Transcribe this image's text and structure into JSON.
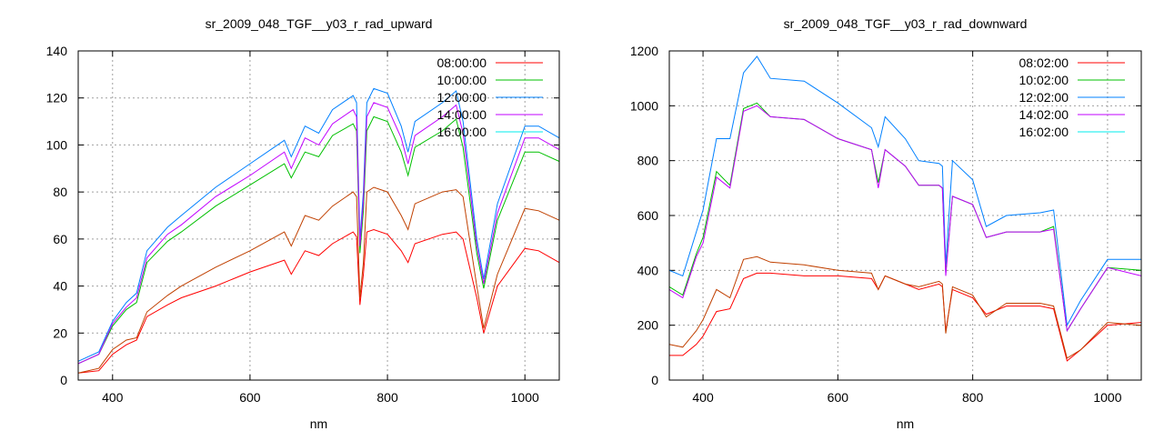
{
  "chart_data": [
    {
      "type": "line",
      "title": "sr_2009_048_TGF__y03_r_rad_upward",
      "xlabel": "nm",
      "ylabel": "",
      "xlim": [
        350,
        1050
      ],
      "ylim": [
        0,
        140
      ],
      "xticks": [
        400,
        600,
        800,
        1000
      ],
      "yticks": [
        0,
        20,
        40,
        60,
        80,
        100,
        120,
        140
      ],
      "grid": true,
      "legend_position": "top-right",
      "x": [
        350,
        380,
        400,
        420,
        435,
        450,
        480,
        500,
        550,
        600,
        650,
        660,
        680,
        700,
        720,
        750,
        755,
        760,
        765,
        770,
        780,
        800,
        820,
        830,
        840,
        880,
        900,
        910,
        930,
        940,
        960,
        1000,
        1020,
        1050
      ],
      "series": [
        {
          "name": "08:00:00",
          "color": "#ff0000",
          "line_color": "#ff0000",
          "values": [
            3,
            4,
            11,
            15,
            17,
            27,
            32,
            35,
            40,
            46,
            51,
            45,
            55,
            53,
            58,
            63,
            61,
            32,
            45,
            63,
            64,
            62,
            55,
            50,
            58,
            62,
            63,
            60,
            35,
            20,
            40,
            56,
            55,
            50
          ]
        },
        {
          "name": "10:00:00",
          "color": "#00c000",
          "line_color": "#00c000",
          "values": [
            7,
            11,
            23,
            30,
            33,
            50,
            59,
            63,
            74,
            83,
            92,
            86,
            97,
            95,
            104,
            109,
            106,
            54,
            72,
            106,
            112,
            110,
            97,
            87,
            99,
            106,
            111,
            99,
            54,
            39,
            68,
            97,
            97,
            93
          ]
        },
        {
          "name": "12:00:00",
          "color": "#0080ff",
          "line_color": "#0080ff",
          "values": [
            8,
            12,
            25,
            33,
            37,
            55,
            65,
            70,
            82,
            92,
            102,
            95,
            108,
            105,
            115,
            121,
            118,
            60,
            80,
            118,
            124,
            122,
            108,
            97,
            110,
            118,
            123,
            110,
            60,
            43,
            75,
            108,
            108,
            103
          ]
        },
        {
          "name": "14:00:00",
          "color": "#c000ff",
          "line_color": "#c000ff",
          "values": [
            7,
            11,
            24,
            31,
            35,
            52,
            62,
            66,
            78,
            87,
            97,
            90,
            103,
            100,
            109,
            115,
            112,
            57,
            76,
            112,
            118,
            116,
            103,
            92,
            104,
            112,
            117,
            105,
            57,
            41,
            71,
            103,
            103,
            98
          ]
        },
        {
          "name": "16:00:00",
          "color": "#00eeee",
          "line_color": "#c04000",
          "values": [
            3,
            5,
            13,
            17,
            18,
            29,
            36,
            40,
            48,
            55,
            63,
            57,
            70,
            68,
            74,
            80,
            78,
            35,
            50,
            80,
            82,
            80,
            70,
            64,
            75,
            80,
            81,
            78,
            40,
            22,
            45,
            73,
            72,
            68
          ]
        }
      ]
    },
    {
      "type": "line",
      "title": "sr_2009_048_TGF__y03_r_rad_downward",
      "xlabel": "nm",
      "ylabel": "",
      "xlim": [
        350,
        1050
      ],
      "ylim": [
        0,
        1200
      ],
      "xticks": [
        400,
        600,
        800,
        1000
      ],
      "yticks": [
        0,
        200,
        400,
        600,
        800,
        1000,
        1200
      ],
      "grid": true,
      "legend_position": "top-right",
      "x": [
        350,
        370,
        390,
        400,
        420,
        440,
        460,
        480,
        500,
        550,
        600,
        650,
        660,
        670,
        700,
        720,
        750,
        755,
        760,
        770,
        800,
        820,
        850,
        900,
        920,
        940,
        960,
        1000,
        1050
      ],
      "series": [
        {
          "name": "08:02:00",
          "color": "#ff0000",
          "line_color": "#ff0000",
          "values": [
            90,
            90,
            130,
            160,
            250,
            260,
            370,
            390,
            390,
            380,
            380,
            370,
            330,
            380,
            350,
            330,
            350,
            340,
            180,
            330,
            300,
            240,
            270,
            270,
            260,
            70,
            110,
            200,
            210
          ]
        },
        {
          "name": "10:02:00",
          "color": "#00c000",
          "line_color": "#00c000",
          "values": [
            340,
            310,
            460,
            520,
            760,
            710,
            990,
            1010,
            960,
            950,
            880,
            840,
            720,
            840,
            780,
            710,
            710,
            700,
            390,
            670,
            640,
            520,
            540,
            540,
            560,
            180,
            260,
            410,
            400
          ]
        },
        {
          "name": "12:02:00",
          "color": "#0080ff",
          "line_color": "#0080ff",
          "values": [
            400,
            380,
            540,
            620,
            880,
            880,
            1120,
            1180,
            1100,
            1090,
            1010,
            920,
            850,
            960,
            880,
            800,
            790,
            780,
            420,
            800,
            730,
            560,
            600,
            610,
            620,
            200,
            290,
            440,
            440
          ]
        },
        {
          "name": "14:02:00",
          "color": "#c000ff",
          "line_color": "#c000ff",
          "values": [
            330,
            300,
            450,
            500,
            740,
            700,
            980,
            1000,
            960,
            950,
            880,
            840,
            700,
            840,
            780,
            710,
            710,
            700,
            380,
            670,
            640,
            520,
            540,
            540,
            550,
            180,
            260,
            410,
            380
          ]
        },
        {
          "name": "16:02:00",
          "color": "#00eeee",
          "line_color": "#c04000",
          "values": [
            130,
            120,
            180,
            220,
            330,
            300,
            440,
            450,
            430,
            420,
            400,
            390,
            330,
            380,
            350,
            340,
            360,
            350,
            170,
            340,
            310,
            230,
            280,
            280,
            270,
            80,
            110,
            210,
            200
          ]
        }
      ]
    }
  ]
}
